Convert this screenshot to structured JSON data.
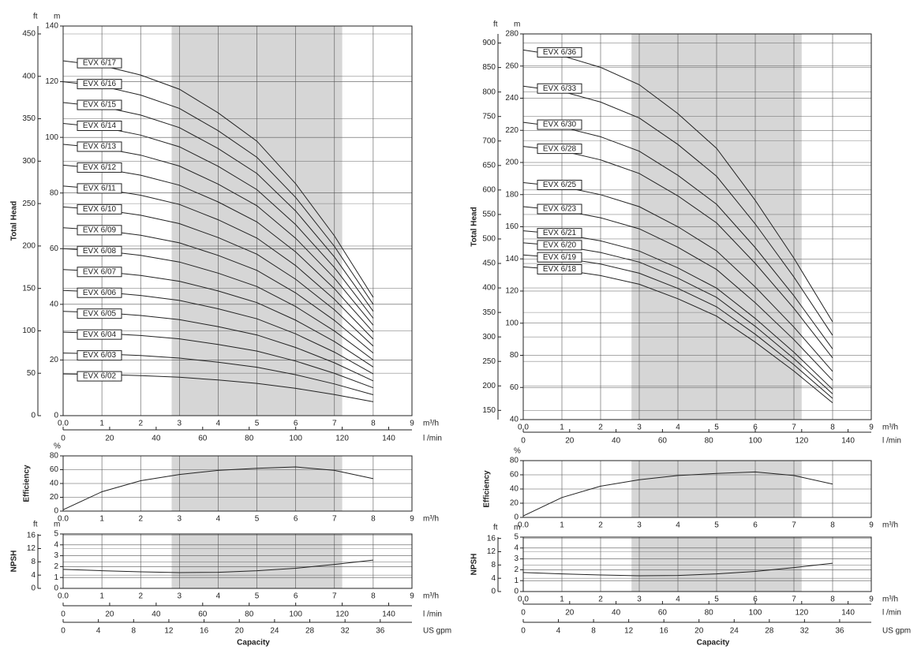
{
  "chart_data": [
    {
      "type": "line",
      "ylabel": "Total Head",
      "yunit": "m",
      "y2unit": "ft",
      "xunit": "m³/h",
      "x": [
        0,
        1,
        2,
        3,
        4,
        5,
        6,
        7,
        8
      ],
      "xlim": [
        0,
        9
      ],
      "xticks": [
        {
          "value": 0,
          "label": "0.0"
        },
        1,
        2,
        3,
        4,
        5,
        6,
        7,
        8,
        9
      ],
      "ylim": [
        0,
        140
      ],
      "yticks": [
        0,
        20,
        40,
        60,
        80,
        100,
        120,
        140
      ],
      "y2lim": [
        0,
        459.3
      ],
      "y2ticks": [
        0,
        50,
        100,
        150,
        200,
        250,
        300,
        350,
        400,
        450
      ],
      "x2unit": "l /min",
      "x2lim": [
        0,
        150
      ],
      "x2ticks": [
        0,
        20,
        40,
        60,
        80,
        100,
        120,
        140
      ],
      "highlight": [
        2.8,
        7.2
      ],
      "series": [
        {
          "name": "EVX 6/02",
          "color": "#222",
          "values": [
            15,
            14.8,
            14.4,
            13.8,
            12.8,
            11.6,
            9.8,
            7.6,
            5
          ]
        },
        {
          "name": "EVX 6/03",
          "color": "#222",
          "values": [
            22.5,
            22.2,
            21.6,
            20.7,
            19.2,
            17.4,
            14.7,
            11.4,
            7.5
          ]
        },
        {
          "name": "EVX 6/04",
          "color": "#222",
          "values": [
            30,
            29.6,
            28.8,
            27.6,
            25.6,
            23.2,
            19.6,
            15.2,
            10
          ]
        },
        {
          "name": "EVX 6/05",
          "color": "#222",
          "values": [
            37.5,
            37,
            36,
            34.5,
            32,
            29,
            24.5,
            19,
            12.5
          ]
        },
        {
          "name": "EVX 6/06",
          "color": "#222",
          "values": [
            45,
            44.4,
            43.2,
            41.4,
            38.4,
            34.8,
            29.4,
            22.8,
            15
          ]
        },
        {
          "name": "EVX 6/07",
          "color": "#222",
          "values": [
            52.5,
            51.8,
            50.4,
            48.3,
            44.8,
            40.6,
            34.3,
            26.6,
            17.5
          ]
        },
        {
          "name": "EVX 6/08",
          "color": "#222",
          "values": [
            60,
            59.2,
            57.6,
            55.2,
            51.2,
            46.4,
            39.2,
            30.4,
            20
          ]
        },
        {
          "name": "EVX 6/09",
          "color": "#222",
          "values": [
            67.5,
            66.6,
            64.8,
            62.1,
            57.6,
            52.2,
            44.1,
            34.2,
            22.5
          ]
        },
        {
          "name": "EVX 6/10",
          "color": "#222",
          "values": [
            75,
            74,
            72,
            69,
            64,
            58,
            49,
            38,
            25
          ]
        },
        {
          "name": "EVX 6/11",
          "color": "#222",
          "values": [
            82.5,
            81.4,
            79.2,
            75.9,
            70.4,
            63.8,
            53.9,
            41.8,
            27.5
          ]
        },
        {
          "name": "EVX 6/12",
          "color": "#222",
          "values": [
            90,
            88.8,
            86.4,
            82.8,
            76.8,
            69.6,
            58.8,
            45.6,
            30
          ]
        },
        {
          "name": "EVX 6/13",
          "color": "#222",
          "values": [
            97.5,
            96.2,
            93.6,
            89.7,
            83.2,
            75.4,
            63.7,
            49.4,
            32.5
          ]
        },
        {
          "name": "EVX 6/14",
          "color": "#222",
          "values": [
            105,
            103.6,
            100.8,
            96.6,
            89.6,
            81.2,
            68.6,
            53.2,
            35
          ]
        },
        {
          "name": "EVX 6/15",
          "color": "#222",
          "values": [
            112.5,
            111,
            108,
            103.5,
            96,
            87,
            73.5,
            57,
            37.5
          ]
        },
        {
          "name": "EVX 6/16",
          "color": "#222",
          "values": [
            120,
            118.4,
            115.2,
            110.4,
            102.4,
            92.8,
            78.4,
            60.8,
            40
          ]
        },
        {
          "name": "EVX 6/17",
          "color": "#222",
          "values": [
            127.5,
            125.8,
            122.4,
            117.3,
            108.8,
            98.6,
            83.3,
            64.6,
            42.5
          ]
        }
      ]
    },
    {
      "type": "line",
      "ylabel": "Efficiency",
      "yunit": "%",
      "xunit": "m³/h",
      "x": [
        0,
        1,
        2,
        3,
        4,
        5,
        6,
        7,
        8
      ],
      "xlim": [
        0,
        9
      ],
      "xticks": [
        {
          "value": 0,
          "label": "0.0"
        },
        1,
        2,
        3,
        4,
        5,
        6,
        7,
        8,
        9
      ],
      "ylim": [
        0,
        80
      ],
      "yticks": [
        0,
        20,
        40,
        60,
        80
      ],
      "highlight": [
        2.8,
        7.2
      ],
      "color": "#222",
      "values": [
        2,
        28,
        44,
        53,
        59,
        62,
        64,
        59,
        47
      ]
    },
    {
      "type": "line",
      "ylabel": "NPSH",
      "yunit": "m",
      "y2unit": "ft",
      "xunit": "m³/h",
      "x": [
        0,
        1,
        2,
        3,
        4,
        5,
        6,
        7,
        8
      ],
      "xlim": [
        0,
        9
      ],
      "xticks": [
        {
          "value": 0,
          "label": "0.0"
        },
        1,
        2,
        3,
        4,
        5,
        6,
        7,
        8,
        9
      ],
      "ylim": [
        0,
        5
      ],
      "yticks": [
        0,
        1,
        2,
        3,
        4,
        5
      ],
      "y2lim": [
        0,
        16.4
      ],
      "y2ticks": [
        0,
        4,
        8,
        12,
        16
      ],
      "x2unit": "l /min",
      "x2lim": [
        0,
        150
      ],
      "x2ticks": [
        0,
        20,
        40,
        60,
        80,
        100,
        120,
        140
      ],
      "x3unit": "US gpm",
      "x3lim": [
        0,
        39.6
      ],
      "x3ticks": [
        0,
        4,
        8,
        12,
        16,
        20,
        24,
        28,
        32,
        36
      ],
      "xlabel": "Capacity",
      "highlight": [
        2.8,
        7.2
      ],
      "color": "#222",
      "values": [
        1.75,
        1.62,
        1.52,
        1.45,
        1.48,
        1.62,
        1.85,
        2.2,
        2.6
      ]
    },
    {
      "type": "line",
      "ylabel": "Total Head",
      "yunit": "m",
      "y2unit": "ft",
      "xunit": "m³/h",
      "x": [
        0,
        1,
        2,
        3,
        4,
        5,
        6,
        7,
        8
      ],
      "xlim": [
        0,
        9
      ],
      "xticks": [
        {
          "value": 0,
          "label": "0.0"
        },
        1,
        2,
        3,
        4,
        5,
        6,
        7,
        8,
        9
      ],
      "ylim": [
        40,
        280
      ],
      "yticks": [
        40,
        60,
        80,
        100,
        120,
        140,
        160,
        180,
        200,
        220,
        240,
        260,
        280
      ],
      "y2lim": [
        131.2,
        918.6
      ],
      "y2ticks": [
        150,
        200,
        250,
        300,
        350,
        400,
        450,
        500,
        550,
        600,
        650,
        700,
        750,
        800,
        850,
        900
      ],
      "x2unit": "l /min",
      "x2lim": [
        0,
        150
      ],
      "x2ticks": [
        0,
        20,
        40,
        60,
        80,
        100,
        120,
        140
      ],
      "highlight": [
        2.8,
        7.2
      ],
      "series": [
        {
          "name": "EVX 6/18",
          "color": "#222",
          "values": [
            135,
            133.2,
            129.6,
            124.2,
            115.2,
            104.4,
            88.2,
            70.2,
            50.4
          ]
        },
        {
          "name": "EVX 6/19",
          "color": "#222",
          "values": [
            142.5,
            140.6,
            136.8,
            131.1,
            121.6,
            110.2,
            93.1,
            74.1,
            53.2
          ]
        },
        {
          "name": "EVX 6/20",
          "color": "#222",
          "values": [
            150,
            148,
            144,
            138,
            128,
            116,
            98,
            78,
            56
          ]
        },
        {
          "name": "EVX 6/21",
          "color": "#222",
          "values": [
            157.5,
            155.4,
            151.2,
            144.9,
            134.4,
            121.8,
            102.9,
            81.9,
            58.8
          ]
        },
        {
          "name": "EVX 6/23",
          "color": "#222",
          "values": [
            172.5,
            170.2,
            165.6,
            158.7,
            147.2,
            133.4,
            112.7,
            89.7,
            64.4
          ]
        },
        {
          "name": "EVX 6/25",
          "color": "#222",
          "values": [
            187.5,
            185,
            180,
            172.5,
            160,
            145,
            122.5,
            97.5,
            70
          ]
        },
        {
          "name": "EVX 6/28",
          "color": "#222",
          "values": [
            210,
            207.2,
            201.6,
            193.2,
            179.2,
            162.4,
            137.2,
            109.2,
            78.4
          ]
        },
        {
          "name": "EVX 6/30",
          "color": "#222",
          "values": [
            225,
            222,
            216,
            207,
            192,
            174,
            147,
            117,
            84
          ]
        },
        {
          "name": "EVX 6/33",
          "color": "#222",
          "values": [
            247.5,
            244.2,
            237.6,
            227.7,
            211.2,
            191.4,
            161.7,
            128.7,
            92.4
          ]
        },
        {
          "name": "EVX 6/36",
          "color": "#222",
          "values": [
            270,
            266.4,
            259.2,
            248.4,
            230.4,
            208.8,
            176.4,
            140.4,
            100.8
          ]
        }
      ]
    },
    {
      "type": "line",
      "ylabel": "Efficiency",
      "yunit": "%",
      "xunit": "m³/h",
      "x": [
        0,
        1,
        2,
        3,
        4,
        5,
        6,
        7,
        8
      ],
      "xlim": [
        0,
        9
      ],
      "xticks": [
        {
          "value": 0,
          "label": "0.0"
        },
        1,
        2,
        3,
        4,
        5,
        6,
        7,
        8,
        9
      ],
      "ylim": [
        0,
        80
      ],
      "yticks": [
        0,
        20,
        40,
        60,
        80
      ],
      "highlight": [
        2.8,
        7.2
      ],
      "color": "#222",
      "values": [
        2,
        28,
        44,
        53,
        59,
        62,
        64,
        59,
        47
      ]
    },
    {
      "type": "line",
      "ylabel": "NPSH",
      "yunit": "m",
      "y2unit": "ft",
      "xunit": "m³/h",
      "x": [
        0,
        1,
        2,
        3,
        4,
        5,
        6,
        7,
        8
      ],
      "xlim": [
        0,
        9
      ],
      "xticks": [
        {
          "value": 0,
          "label": "0.0"
        },
        1,
        2,
        3,
        4,
        5,
        6,
        7,
        8,
        9
      ],
      "ylim": [
        0,
        5
      ],
      "yticks": [
        0,
        1,
        2,
        3,
        4,
        5
      ],
      "y2lim": [
        0,
        16.4
      ],
      "y2ticks": [
        0,
        4,
        8,
        12,
        16
      ],
      "x2unit": "l /min",
      "x2lim": [
        0,
        150
      ],
      "x2ticks": [
        0,
        20,
        40,
        60,
        80,
        100,
        120,
        140
      ],
      "x3unit": "US gpm",
      "x3lim": [
        0,
        39.6
      ],
      "x3ticks": [
        0,
        4,
        8,
        12,
        16,
        20,
        24,
        28,
        32,
        36
      ],
      "xlabel": "Capacity",
      "highlight": [
        2.8,
        7.2
      ],
      "color": "#222",
      "values": [
        1.75,
        1.62,
        1.52,
        1.45,
        1.48,
        1.62,
        1.85,
        2.2,
        2.6
      ]
    }
  ]
}
